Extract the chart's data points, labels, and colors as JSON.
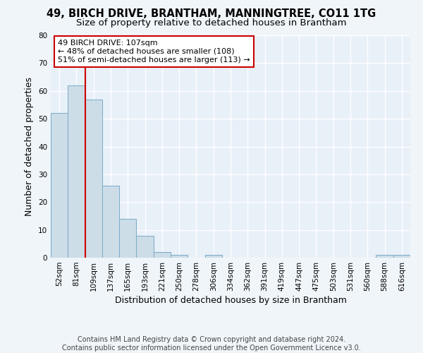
{
  "title": "49, BIRCH DRIVE, BRANTHAM, MANNINGTREE, CO11 1TG",
  "subtitle": "Size of property relative to detached houses in Brantham",
  "xlabel": "Distribution of detached houses by size in Brantham",
  "ylabel": "Number of detached properties",
  "categories": [
    "52sqm",
    "81sqm",
    "109sqm",
    "137sqm",
    "165sqm",
    "193sqm",
    "221sqm",
    "250sqm",
    "278sqm",
    "306sqm",
    "334sqm",
    "362sqm",
    "391sqm",
    "419sqm",
    "447sqm",
    "475sqm",
    "503sqm",
    "531sqm",
    "560sqm",
    "588sqm",
    "616sqm"
  ],
  "values": [
    52,
    62,
    57,
    26,
    14,
    8,
    2,
    1,
    0,
    1,
    0,
    0,
    0,
    0,
    0,
    0,
    0,
    0,
    0,
    1,
    1
  ],
  "bar_color": "#ccdde8",
  "bar_edge_color": "#7aaac8",
  "vline_x_index": 2,
  "vline_color": "#cc0000",
  "annotation_line1": "49 BIRCH DRIVE: 107sqm",
  "annotation_line2": "← 48% of detached houses are smaller (108)",
  "annotation_line3": "51% of semi-detached houses are larger (113) →",
  "annotation_box_color": "#ffffff",
  "annotation_box_edge_color": "#cc0000",
  "ylim": [
    0,
    80
  ],
  "yticks": [
    0,
    10,
    20,
    30,
    40,
    50,
    60,
    70,
    80
  ],
  "footer_line1": "Contains HM Land Registry data © Crown copyright and database right 2024.",
  "footer_line2": "Contains public sector information licensed under the Open Government Licence v3.0.",
  "background_color": "#f0f5fa",
  "plot_bg_color": "#e8f0f8",
  "grid_color": "#ffffff",
  "title_fontsize": 10.5,
  "subtitle_fontsize": 9.5,
  "axis_label_fontsize": 9,
  "tick_fontsize": 7.5,
  "annotation_fontsize": 8,
  "footer_fontsize": 7
}
